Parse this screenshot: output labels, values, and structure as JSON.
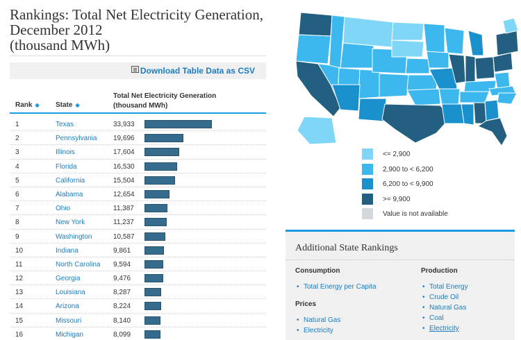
{
  "page": {
    "title_lines": [
      "Rankings: Total Net Electricity Generation,",
      "December 2012",
      "(thousand MWh)"
    ]
  },
  "download": {
    "label": "Download Table Data as CSV",
    "icon": "csv-file-icon"
  },
  "table": {
    "headers": {
      "rank": "Rank",
      "state": "State",
      "gen_line1": "Total Net Electricity Generation",
      "gen_line2": "(thousand MWh)"
    },
    "rows": [
      {
        "rank": "1",
        "state": "Texas",
        "value": "33,933",
        "num": 33933
      },
      {
        "rank": "2",
        "state": "Pennsylvania",
        "value": "19,696",
        "num": 19696
      },
      {
        "rank": "3",
        "state": "Illinois",
        "value": "17,604",
        "num": 17604
      },
      {
        "rank": "4",
        "state": "Florida",
        "value": "16,530",
        "num": 16530
      },
      {
        "rank": "5",
        "state": "California",
        "value": "15,504",
        "num": 15504
      },
      {
        "rank": "6",
        "state": "Alabama",
        "value": "12,654",
        "num": 12654
      },
      {
        "rank": "7",
        "state": "Ohio",
        "value": "11,387",
        "num": 11387
      },
      {
        "rank": "8",
        "state": "New York",
        "value": "11,237",
        "num": 11237
      },
      {
        "rank": "9",
        "state": "Washington",
        "value": "10,587",
        "num": 10587
      },
      {
        "rank": "10",
        "state": "Indiana",
        "value": "9,861",
        "num": 9861
      },
      {
        "rank": "11",
        "state": "North Carolina",
        "value": "9,594",
        "num": 9594
      },
      {
        "rank": "12",
        "state": "Georgia",
        "value": "9,476",
        "num": 9476
      },
      {
        "rank": "13",
        "state": "Louisiana",
        "value": "8,287",
        "num": 8287
      },
      {
        "rank": "14",
        "state": "Arizona",
        "value": "8,224",
        "num": 8224
      },
      {
        "rank": "15",
        "state": "Missouri",
        "value": "8,140",
        "num": 8140
      },
      {
        "rank": "16",
        "state": "Michigan",
        "value": "8,099",
        "num": 8099
      }
    ]
  },
  "legend": [
    {
      "label": "<= 2,900",
      "color": "#7fd6f7"
    },
    {
      "label": "2,900 to < 6,200",
      "color": "#3cb8ee"
    },
    {
      "label": "6,200 to < 9,900",
      "color": "#1a90cc"
    },
    {
      "label": ">= 9,900",
      "color": "#235f80"
    },
    {
      "label": "Value is not available",
      "color": "#d4d7dc"
    }
  ],
  "panel": {
    "title": "Additional State Rankings",
    "consumption": {
      "heading": "Consumption",
      "items": [
        "Total Energy per Capita"
      ]
    },
    "prices": {
      "heading": "Prices",
      "items": [
        "Natural Gas",
        "Electricity"
      ]
    },
    "production": {
      "heading": "Production",
      "items": [
        "Total Energy",
        "Crude Oil",
        "Natural Gas",
        "Coal",
        "Electricity"
      ],
      "active_index": 4
    }
  }
}
